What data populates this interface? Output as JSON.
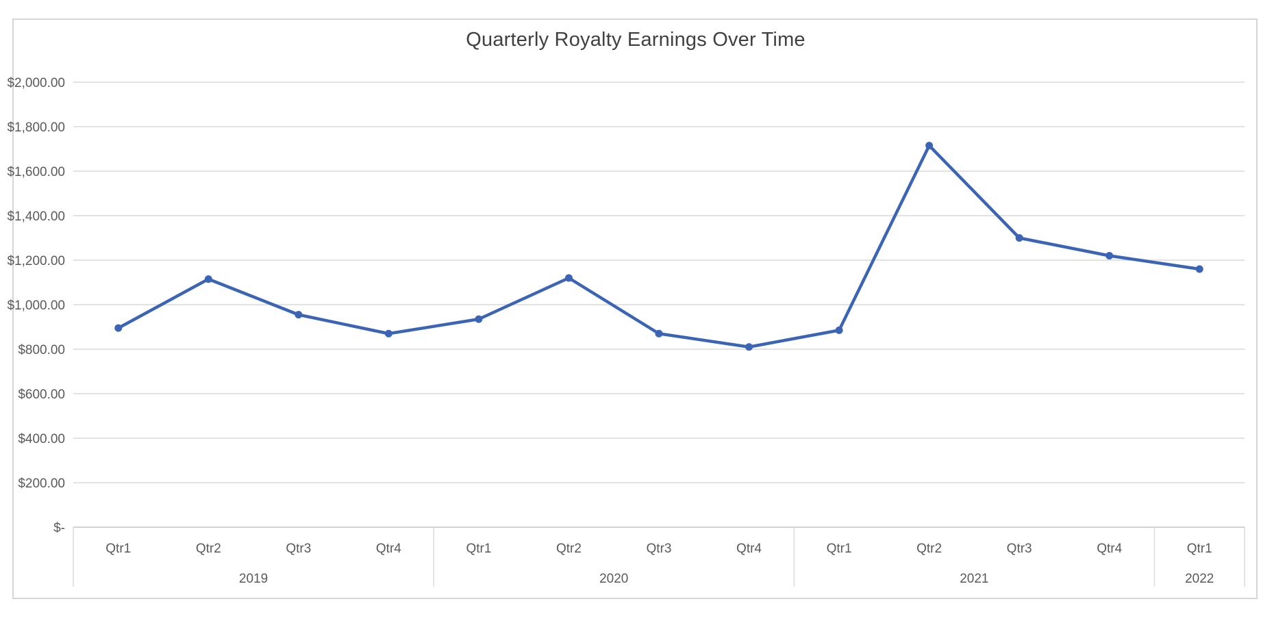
{
  "chart_data": {
    "type": "line",
    "title": "Quarterly Royalty Earnings Over Time",
    "categories": [
      "Qtr1",
      "Qtr2",
      "Qtr3",
      "Qtr4",
      "Qtr1",
      "Qtr2",
      "Qtr3",
      "Qtr4",
      "Qtr1",
      "Qtr2",
      "Qtr3",
      "Qtr4",
      "Qtr1"
    ],
    "year_groups": [
      {
        "label": "2019",
        "count": 4
      },
      {
        "label": "2020",
        "count": 4
      },
      {
        "label": "2021",
        "count": 4
      },
      {
        "label": "2022",
        "count": 1
      }
    ],
    "values": [
      895,
      1115,
      955,
      870,
      935,
      1120,
      870,
      810,
      885,
      1715,
      1300,
      1220,
      1160
    ],
    "series_name": "Quarterly Royalty Earnings",
    "xlabel": "",
    "ylabel": "",
    "ylim": [
      0,
      2000
    ],
    "y_tick_step": 200,
    "y_tick_labels": [
      "$2,000.00",
      "$1,800.00",
      "$1,600.00",
      "$1,400.00",
      "$1,200.00",
      "$1,000.00",
      "$800.00",
      "$600.00",
      "$400.00",
      "$200.00",
      "$-"
    ],
    "grid": true,
    "legend": "none",
    "line_color": "#3b64b5",
    "marker_color": "#3b64b5",
    "grid_color": "#d9d9d9",
    "axis_line_color": "#c3c3c3",
    "label_color": "#595959",
    "title_color": "#404040"
  }
}
